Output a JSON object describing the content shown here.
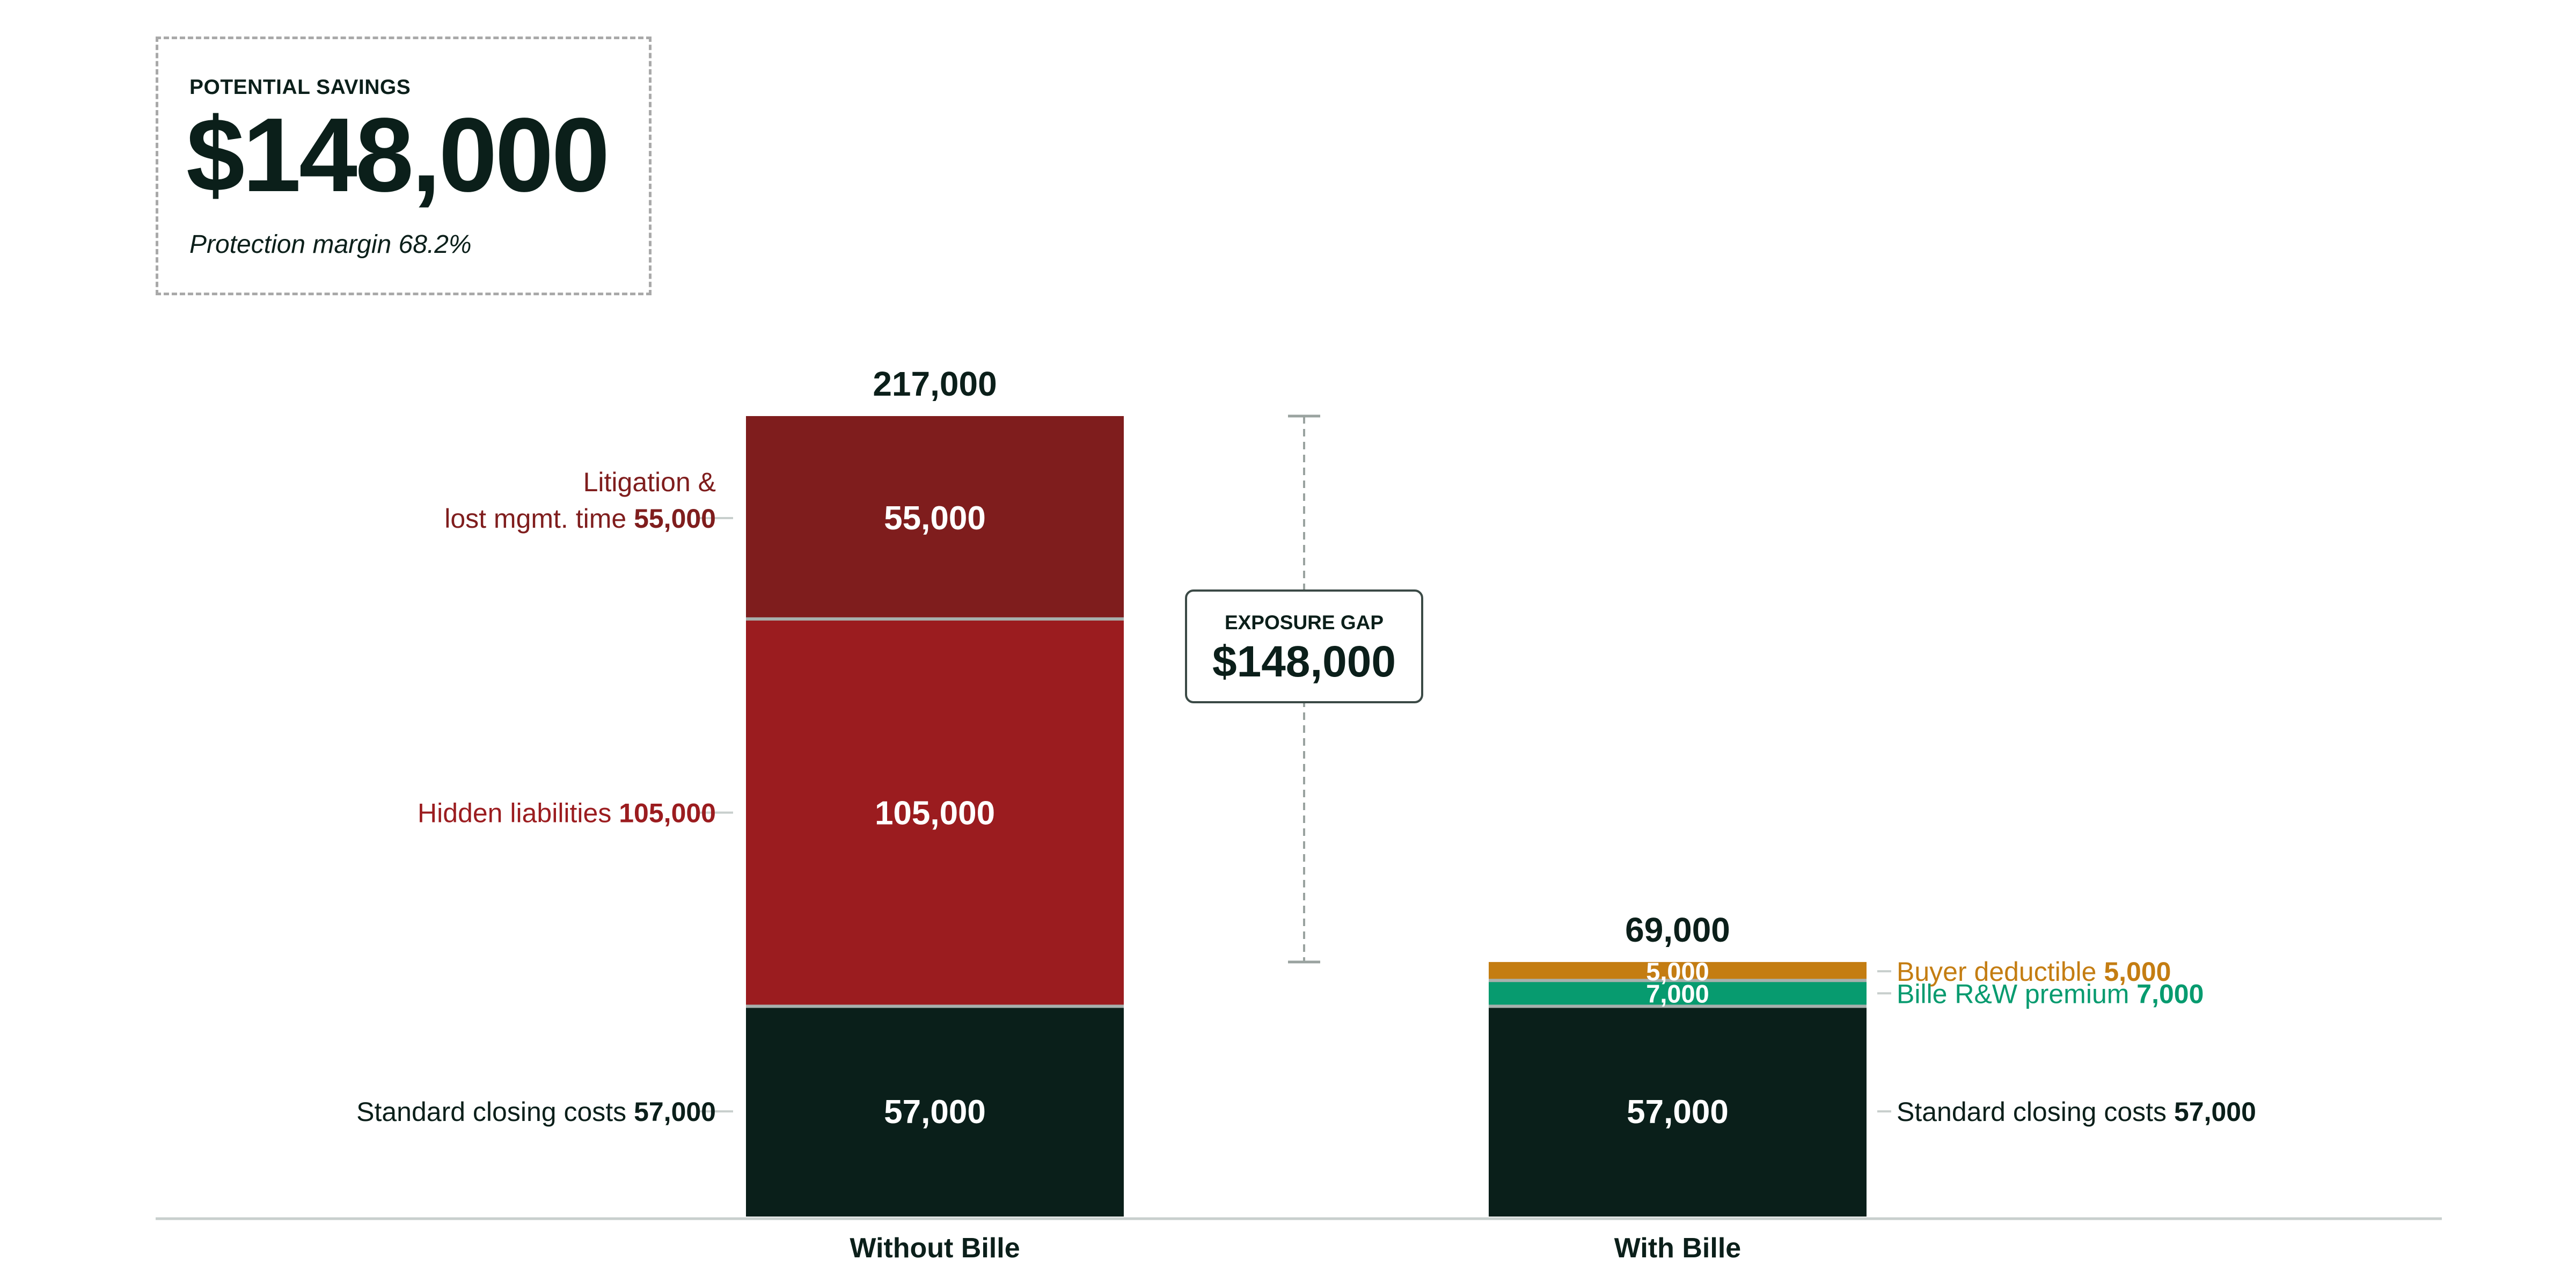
{
  "summary": {
    "label": "POTENTIAL SAVINGS",
    "value": "$148,000",
    "subtext": "Protection margin 68.2%"
  },
  "gap_callout": {
    "label": "EXPOSURE GAP",
    "value": "$148,000"
  },
  "colors": {
    "ink": "#0b1f1a",
    "litigation": "#7f1d1d",
    "hidden": "#9b1c1f",
    "closing": "#0a1f1a",
    "deductible": "#c47d12",
    "premium": "#079b6f",
    "axis": "#c8cfcd",
    "gap_line": "#9aa3a0"
  },
  "chart_data": {
    "type": "bar",
    "stacked": true,
    "categories": [
      "Without Bille",
      "With Bille"
    ],
    "totals": [
      217000,
      69000
    ],
    "total_labels": [
      "217,000",
      "69,000"
    ],
    "ylim": [
      0,
      217000
    ],
    "grid": false,
    "legend": "none",
    "stacks": [
      {
        "category": "Without Bille",
        "segments": [
          {
            "name": "Standard closing costs",
            "value": 57000,
            "label": "57,000",
            "color_key": "closing",
            "side": "left",
            "side_lines": [
              "Standard closing costs"
            ]
          },
          {
            "name": "Hidden liabilities",
            "value": 105000,
            "label": "105,000",
            "color_key": "hidden",
            "side": "left",
            "side_lines": [
              "Hidden liabilities"
            ]
          },
          {
            "name": "Litigation & lost mgmt. time",
            "value": 55000,
            "label": "55,000",
            "color_key": "litigation",
            "side": "left",
            "side_lines": [
              "Litigation &",
              "lost mgmt. time"
            ]
          }
        ]
      },
      {
        "category": "With Bille",
        "segments": [
          {
            "name": "Standard closing costs",
            "value": 57000,
            "label": "57,000",
            "color_key": "closing",
            "side": "right",
            "side_lines": [
              "Standard closing costs"
            ]
          },
          {
            "name": "Bille R&W premium",
            "value": 7000,
            "label": "7,000",
            "color_key": "premium",
            "side": "right",
            "side_lines": [
              "Bille R&W premium"
            ]
          },
          {
            "name": "Buyer deductible",
            "value": 5000,
            "label": "5,000",
            "color_key": "deductible",
            "side": "right",
            "side_lines": [
              "Buyer deductible"
            ]
          }
        ]
      }
    ],
    "gap": {
      "from": 69000,
      "to": 217000,
      "value": 148000
    }
  }
}
